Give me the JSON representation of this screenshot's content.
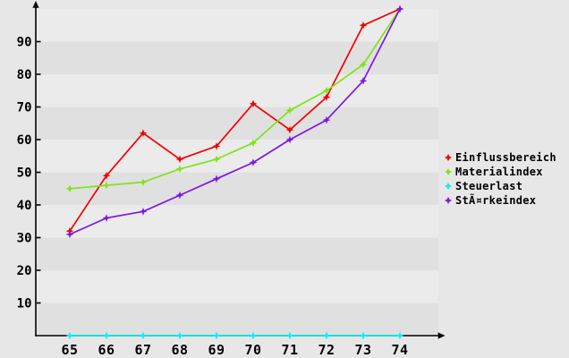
{
  "page": {
    "background_color": "#e7e7e7"
  },
  "chart_data": {
    "type": "line",
    "title": "",
    "xlabel": "",
    "ylabel": "",
    "categories": [
      "65",
      "66",
      "67",
      "68",
      "69",
      "70",
      "71",
      "72",
      "73",
      "74"
    ],
    "series": [
      {
        "name": "Einflussbereich",
        "color": "#f20000",
        "values": [
          32,
          49,
          62,
          54,
          58,
          71,
          63,
          73,
          95,
          100
        ]
      },
      {
        "name": "Materialindex",
        "color": "#7de517",
        "values": [
          45,
          46,
          47,
          51,
          54,
          59,
          69,
          75,
          83,
          100
        ]
      },
      {
        "name": "Steuerlast",
        "color": "#00f0f0",
        "values": [
          0,
          0,
          0,
          0,
          0,
          0,
          0,
          0,
          0,
          0
        ]
      },
      {
        "name": "StÃ¤rkeindex",
        "color": "#7d17e5",
        "values": [
          31,
          36,
          38,
          43,
          48,
          53,
          60,
          66,
          78,
          100
        ]
      }
    ],
    "y_ticks": [
      "10",
      "20",
      "30",
      "40",
      "50",
      "60",
      "70",
      "80",
      "90"
    ],
    "ylim": [
      0,
      100
    ],
    "grid": "horizontal-bands",
    "band_color_dark": "#e0e0e0",
    "band_color_light": "#ebebeb",
    "axis_color": "#000000",
    "tick_label_color": "#000000",
    "marker": "four-point-star",
    "legend_position": "right"
  }
}
